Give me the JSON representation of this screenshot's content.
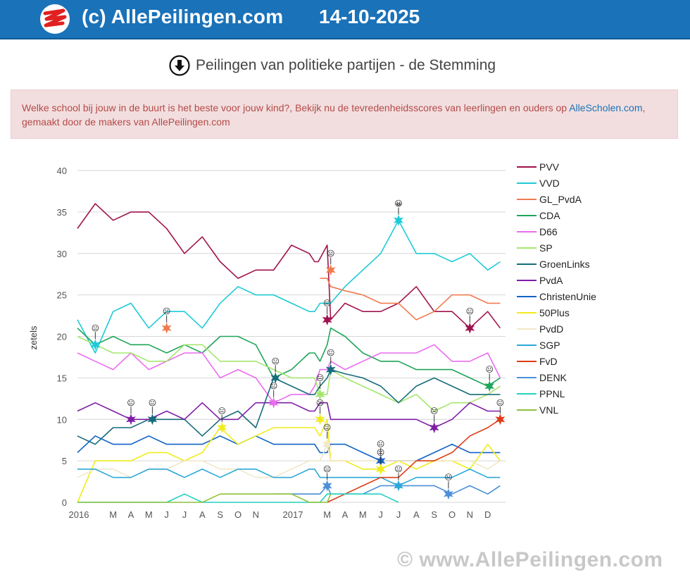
{
  "header": {
    "site_title": "(c) AllePeilingen.com",
    "date": "14-10-2025"
  },
  "page": {
    "title": "Peilingen van politieke partijen - de Stemming"
  },
  "notice": {
    "text_before": "Welke school bij jouw in de buurt is het beste voor jouw kind?, Bekijk nu de tevredenheidsscores van leerlingen en ouders op ",
    "link_text": "AlleScholen.com",
    "text_after": ", gemaakt door de makers van AllePeilingen.com"
  },
  "watermark": "© www.AllePeilingen.com",
  "chart_data": {
    "type": "line",
    "title": "",
    "xlabel": "",
    "ylabel": "zetels",
    "ylim": [
      0,
      40
    ],
    "y_ticks": [
      0,
      5,
      10,
      15,
      20,
      25,
      30,
      35,
      40
    ],
    "xlim": [
      0,
      24
    ],
    "x_ticks": [
      {
        "x": 0,
        "label": "2016"
      },
      {
        "x": 2,
        "label": "M"
      },
      {
        "x": 3,
        "label": "A"
      },
      {
        "x": 4,
        "label": "M"
      },
      {
        "x": 5,
        "label": "J"
      },
      {
        "x": 6,
        "label": "J"
      },
      {
        "x": 7,
        "label": "A"
      },
      {
        "x": 8,
        "label": "S"
      },
      {
        "x": 9,
        "label": "O"
      },
      {
        "x": 10,
        "label": "N"
      },
      {
        "x": 12,
        "label": "2017"
      },
      {
        "x": 14,
        "label": "M"
      },
      {
        "x": 15,
        "label": "A"
      },
      {
        "x": 16,
        "label": "M"
      },
      {
        "x": 17,
        "label": "J"
      },
      {
        "x": 18,
        "label": "J"
      },
      {
        "x": 19,
        "label": "A"
      },
      {
        "x": 20,
        "label": "S"
      },
      {
        "x": 21,
        "label": "O"
      },
      {
        "x": 22,
        "label": "N"
      },
      {
        "x": 23,
        "label": "D"
      }
    ],
    "legend_position": "right",
    "grid": true,
    "series": [
      {
        "name": "PVV",
        "color": "#a0124c",
        "x": [
          0,
          1,
          2,
          3,
          4,
          5,
          6,
          7,
          8,
          9,
          10,
          11,
          12,
          13,
          13.3,
          13.5,
          14,
          14.2,
          15,
          16,
          17,
          18,
          19,
          20,
          21,
          22,
          23,
          23.7
        ],
        "values": [
          33,
          36,
          34,
          35,
          35,
          33,
          30,
          32,
          29,
          27,
          28,
          28,
          31,
          30,
          29,
          29,
          31,
          22,
          24,
          23,
          23,
          24,
          26,
          23,
          23,
          21,
          23,
          21
        ]
      },
      {
        "name": "VVD",
        "color": "#1ecad6",
        "x": [
          0,
          1,
          2,
          3,
          4,
          5,
          6,
          7,
          8,
          9,
          10,
          11,
          12,
          13,
          13.3,
          13.6,
          14,
          14.2,
          15,
          16,
          17,
          18,
          19,
          20,
          21,
          22,
          23,
          23.7
        ],
        "values": [
          22,
          18,
          23,
          24,
          21,
          23,
          23,
          21,
          24,
          26,
          25,
          25,
          24,
          23,
          23,
          24,
          24,
          24,
          26,
          28,
          30,
          34,
          30,
          30,
          29,
          30,
          28,
          29
        ]
      },
      {
        "name": "GL_PvdA",
        "color": "#f07b50",
        "x": [
          13.6,
          14,
          14.2,
          15,
          16,
          17,
          18,
          19,
          20,
          21,
          22,
          23,
          23.7
        ],
        "values": [
          27,
          27,
          26,
          25.5,
          25,
          24,
          24,
          22,
          23,
          25,
          25,
          24,
          24
        ]
      },
      {
        "name": "CDA",
        "color": "#1fa55a",
        "x": [
          0,
          1,
          2,
          3,
          4,
          5,
          6,
          7,
          8,
          9,
          10,
          11,
          12,
          13,
          13.3,
          13.6,
          14,
          14.2,
          15,
          16,
          17,
          18,
          19,
          20,
          21,
          22,
          23,
          23.7
        ],
        "values": [
          21,
          19,
          20,
          19,
          19,
          18,
          19,
          18,
          20,
          20,
          19,
          15,
          16,
          18,
          18,
          17,
          19,
          21,
          20,
          18,
          17,
          17,
          16,
          16,
          16,
          15,
          14,
          15
        ]
      },
      {
        "name": "D66",
        "color": "#ea6df0",
        "x": [
          0,
          1,
          2,
          3,
          4,
          5,
          6,
          7,
          8,
          9,
          10,
          11,
          12,
          13,
          13.3,
          13.6,
          14,
          14.2,
          15,
          16,
          17,
          18,
          19,
          20,
          21,
          22,
          23,
          23.7
        ],
        "values": [
          18,
          17,
          16,
          18,
          16,
          17,
          18,
          18,
          15,
          16,
          15,
          12,
          13,
          13,
          14,
          16,
          16,
          17,
          16,
          17,
          18,
          18,
          18,
          19,
          17,
          17,
          18,
          15
        ]
      },
      {
        "name": "SP",
        "color": "#a6e66e",
        "x": [
          0,
          1,
          2,
          3,
          4,
          5,
          6,
          7,
          8,
          9,
          10,
          11,
          12,
          13,
          13.3,
          13.6,
          14,
          14.2,
          15,
          16,
          17,
          18,
          19,
          20,
          21,
          22,
          23,
          23.7
        ],
        "values": [
          20,
          19,
          18,
          18,
          17,
          17,
          19,
          19,
          17,
          17,
          17,
          16,
          15,
          15,
          15,
          13,
          13,
          16,
          15,
          14,
          13,
          12,
          13,
          11,
          12,
          12,
          13,
          14
        ]
      },
      {
        "name": "GroenLinks",
        "color": "#156c7a",
        "x": [
          0,
          1,
          2,
          3,
          4,
          5,
          6,
          7,
          8,
          9,
          10,
          11,
          12,
          13,
          13.3,
          13.6,
          14,
          14.2,
          15,
          16,
          17,
          18,
          19,
          20,
          21,
          22,
          23,
          23.7
        ],
        "values": [
          8,
          7,
          9,
          9,
          10,
          10,
          10,
          8,
          10,
          11,
          9,
          15,
          14,
          13,
          13,
          14,
          15,
          16,
          15.5,
          15,
          14,
          12,
          14,
          15,
          14,
          13,
          13,
          13
        ]
      },
      {
        "name": "PvdA",
        "color": "#7e1ea5",
        "x": [
          0,
          1,
          2,
          3,
          4,
          5,
          6,
          7,
          8,
          9,
          10,
          11,
          12,
          13,
          13.3,
          13.6,
          14,
          14.2,
          15,
          16,
          17,
          18,
          19,
          20,
          21,
          22,
          23,
          23.7
        ],
        "values": [
          11,
          12,
          11,
          10,
          10,
          11,
          10,
          12,
          10,
          10,
          12,
          12,
          12,
          11,
          11,
          12,
          12,
          10,
          10,
          10,
          10,
          10,
          10,
          9,
          10,
          12,
          11,
          11
        ]
      },
      {
        "name": "ChristenUnie",
        "color": "#1163c4",
        "x": [
          0,
          1,
          2,
          3,
          4,
          5,
          6,
          7,
          8,
          9,
          10,
          11,
          12,
          13,
          13.3,
          13.6,
          14,
          14.2,
          15,
          16,
          17,
          18,
          19,
          20,
          21,
          22,
          23,
          23.7
        ],
        "values": [
          6,
          8,
          7,
          7,
          8,
          7,
          7,
          7,
          8,
          7,
          8,
          7,
          7,
          7,
          7,
          6,
          6,
          7,
          7,
          6,
          5,
          5,
          5,
          6,
          7,
          6,
          6,
          6
        ]
      },
      {
        "name": "50Plus",
        "color": "#f0ec1e",
        "x": [
          0,
          1,
          2,
          3,
          4,
          5,
          6,
          7,
          8,
          9,
          10,
          11,
          12,
          13,
          13.3,
          13.6,
          14,
          14.2,
          15,
          16,
          17,
          18,
          19,
          20,
          21,
          22,
          23,
          23.7
        ],
        "values": [
          0,
          5,
          5,
          5,
          6,
          6,
          5,
          6,
          9,
          7,
          8,
          9,
          9,
          9,
          9,
          8,
          10,
          5,
          5,
          4,
          4,
          5,
          4,
          5,
          5,
          4,
          7,
          5
        ]
      },
      {
        "name": "PvdD",
        "color": "#f2e8c8",
        "x": [
          0,
          1,
          2,
          3,
          4,
          5,
          6,
          7,
          8,
          9,
          10,
          11,
          12,
          13,
          13.3,
          13.6,
          14,
          14.2,
          15,
          16,
          17,
          18,
          19,
          20,
          21,
          22,
          23,
          23.7
        ],
        "values": [
          3,
          4,
          4,
          3,
          4,
          4,
          5,
          5,
          4,
          4,
          3,
          3,
          4,
          5,
          5,
          5,
          7,
          5,
          5,
          5,
          5,
          5,
          5,
          5,
          5,
          5,
          4,
          5
        ]
      },
      {
        "name": "SGP",
        "color": "#2ca8d8",
        "x": [
          0,
          1,
          2,
          3,
          4,
          5,
          6,
          7,
          8,
          9,
          10,
          11,
          12,
          13,
          13.3,
          13.6,
          14,
          14.2,
          15,
          16,
          17,
          18,
          19,
          20,
          21,
          22,
          23,
          23.7
        ],
        "values": [
          4,
          4,
          3,
          3,
          4,
          4,
          3,
          4,
          3,
          4,
          4,
          3,
          3,
          4,
          4,
          3,
          3,
          3,
          3,
          3,
          3,
          2,
          3,
          3,
          3,
          4,
          3,
          3
        ]
      },
      {
        "name": "FvD",
        "color": "#dd3c16",
        "x": [
          14,
          15,
          16,
          17,
          18,
          19,
          20,
          21,
          22,
          23,
          23.7
        ],
        "values": [
          0,
          1,
          2,
          3,
          3,
          5,
          5,
          6,
          8,
          9,
          10
        ]
      },
      {
        "name": "DENK",
        "color": "#4b8fd8",
        "x": [
          11,
          12,
          13,
          13.3,
          13.6,
          14,
          14.2,
          15,
          16,
          17,
          18,
          19,
          20,
          21,
          22,
          23,
          23.7
        ],
        "values": [
          1,
          1,
          1,
          1,
          1,
          2,
          1,
          1,
          1,
          2,
          2,
          2,
          2,
          1,
          2,
          1,
          2
        ]
      },
      {
        "name": "PPNL",
        "color": "#24d1c2",
        "x": [
          0,
          1,
          2,
          3,
          4,
          5,
          6,
          7,
          8,
          9,
          10,
          11,
          12,
          13,
          13.3,
          13.6,
          14,
          14.2,
          15,
          16,
          17,
          18
        ],
        "values": [
          0,
          0,
          0,
          0,
          0,
          0,
          1,
          0,
          0,
          0,
          0,
          0,
          0,
          0,
          0,
          0,
          1,
          1,
          1,
          1,
          1,
          0
        ]
      },
      {
        "name": "VNL",
        "color": "#8fc23a",
        "x": [
          0,
          1,
          2,
          3,
          4,
          5,
          6,
          7,
          8,
          9,
          10,
          11,
          12,
          13,
          13.3,
          13.6,
          14,
          14.2
        ],
        "values": [
          0,
          0,
          0,
          0,
          0,
          0,
          0,
          0,
          1,
          1,
          1,
          1,
          1,
          0,
          0,
          0,
          0,
          1
        ]
      }
    ],
    "markers": [
      {
        "series": "VVD",
        "x": 1,
        "y": 19,
        "emoji": "😐"
      },
      {
        "series": "GL_PvdA",
        "x": 5,
        "y": 21,
        "emoji": "😐"
      },
      {
        "series": "PvdA",
        "x": 3,
        "y": 10,
        "emoji": "😐"
      },
      {
        "series": "GroenLinks",
        "x": 4.2,
        "y": 10,
        "emoji": "😐"
      },
      {
        "series": "50Plus",
        "x": 8.1,
        "y": 9,
        "emoji": "😐"
      },
      {
        "series": "D66",
        "x": 11,
        "y": 12,
        "emoji": "😐"
      },
      {
        "series": "GroenLinks",
        "x": 11.1,
        "y": 15,
        "emoji": "😐"
      },
      {
        "series": "SP",
        "x": 13.6,
        "y": 13,
        "emoji": "😐"
      },
      {
        "series": "50Plus",
        "x": 13.6,
        "y": 10,
        "emoji": "😐"
      },
      {
        "series": "PvdD",
        "x": 14,
        "y": 7,
        "emoji": "😐"
      },
      {
        "series": "PVV",
        "x": 14,
        "y": 22,
        "emoji": "😐"
      },
      {
        "series": "GL_PvdA",
        "x": 14.2,
        "y": 28,
        "emoji": "😐"
      },
      {
        "series": "GroenLinks",
        "x": 14.2,
        "y": 16,
        "emoji": "😐"
      },
      {
        "series": "DENK",
        "x": 14,
        "y": 2,
        "emoji": "😐"
      },
      {
        "series": "ChristenUnie",
        "x": 17,
        "y": 5,
        "emoji": "😐"
      },
      {
        "series": "50Plus",
        "x": 17,
        "y": 4,
        "emoji": "😐"
      },
      {
        "series": "SGP",
        "x": 18,
        "y": 2,
        "emoji": "😐"
      },
      {
        "series": "VVD",
        "x": 18,
        "y": 34,
        "emoji": "😀"
      },
      {
        "series": "PvdA",
        "x": 20,
        "y": 9,
        "emoji": "😐"
      },
      {
        "series": "DENK",
        "x": 20.8,
        "y": 1,
        "emoji": "😐"
      },
      {
        "series": "PVV",
        "x": 22,
        "y": 21,
        "emoji": "😐"
      },
      {
        "series": "CDA",
        "x": 23.1,
        "y": 14,
        "emoji": "😐"
      },
      {
        "series": "FvD",
        "x": 23.7,
        "y": 10,
        "emoji": "😐"
      }
    ]
  }
}
